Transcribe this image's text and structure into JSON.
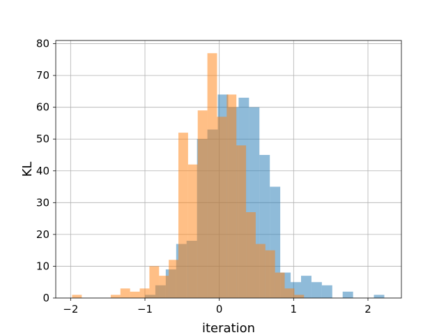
{
  "chart_data": {
    "type": "bar",
    "title": "",
    "xlabel": "iteration",
    "ylabel": "KL",
    "xlim": [
      -2.2,
      2.45
    ],
    "ylim": [
      0,
      81
    ],
    "grid": true,
    "legend": "none",
    "x_ticks": [
      -2,
      -1,
      0,
      1,
      2
    ],
    "x_tick_labels": [
      "−2",
      "−1",
      "0",
      "1",
      "2"
    ],
    "y_ticks": [
      0,
      10,
      20,
      30,
      40,
      50,
      60,
      70,
      80
    ],
    "y_tick_labels": [
      "0",
      "10",
      "20",
      "30",
      "40",
      "50",
      "60",
      "70",
      "80"
    ],
    "series": [
      {
        "color": "#1f77b4",
        "opacity": 0.5,
        "bins": [
          {
            "x0": -1.0,
            "x1": -0.86,
            "count": 1
          },
          {
            "x0": -0.86,
            "x1": -0.72,
            "count": 4
          },
          {
            "x0": -0.72,
            "x1": -0.58,
            "count": 9
          },
          {
            "x0": -0.58,
            "x1": -0.44,
            "count": 17
          },
          {
            "x0": -0.44,
            "x1": -0.3,
            "count": 18
          },
          {
            "x0": -0.3,
            "x1": -0.16,
            "count": 50
          },
          {
            "x0": -0.16,
            "x1": -0.02,
            "count": 53
          },
          {
            "x0": -0.02,
            "x1": 0.12,
            "count": 64
          },
          {
            "x0": 0.12,
            "x1": 0.26,
            "count": 60
          },
          {
            "x0": 0.26,
            "x1": 0.4,
            "count": 63
          },
          {
            "x0": 0.4,
            "x1": 0.54,
            "count": 60
          },
          {
            "x0": 0.54,
            "x1": 0.68,
            "count": 45
          },
          {
            "x0": 0.68,
            "x1": 0.82,
            "count": 35
          },
          {
            "x0": 0.82,
            "x1": 0.96,
            "count": 8
          },
          {
            "x0": 0.96,
            "x1": 1.1,
            "count": 5
          },
          {
            "x0": 1.1,
            "x1": 1.24,
            "count": 7
          },
          {
            "x0": 1.24,
            "x1": 1.38,
            "count": 5
          },
          {
            "x0": 1.38,
            "x1": 1.52,
            "count": 4
          },
          {
            "x0": 1.52,
            "x1": 1.66,
            "count": 0
          },
          {
            "x0": 1.66,
            "x1": 1.8,
            "count": 2
          },
          {
            "x0": 1.8,
            "x1": 1.94,
            "count": 0
          },
          {
            "x0": 1.94,
            "x1": 2.08,
            "count": 0
          },
          {
            "x0": 2.08,
            "x1": 2.22,
            "count": 1
          }
        ]
      },
      {
        "color": "#ff7f0e",
        "opacity": 0.5,
        "bins": [
          {
            "x0": -1.98,
            "x1": -1.85,
            "count": 1
          },
          {
            "x0": -1.85,
            "x1": -1.72,
            "count": 0
          },
          {
            "x0": -1.72,
            "x1": -1.59,
            "count": 0
          },
          {
            "x0": -1.59,
            "x1": -1.46,
            "count": 0
          },
          {
            "x0": -1.46,
            "x1": -1.33,
            "count": 1
          },
          {
            "x0": -1.33,
            "x1": -1.2,
            "count": 3
          },
          {
            "x0": -1.2,
            "x1": -1.07,
            "count": 2
          },
          {
            "x0": -1.07,
            "x1": -0.94,
            "count": 3
          },
          {
            "x0": -0.94,
            "x1": -0.81,
            "count": 10
          },
          {
            "x0": -0.81,
            "x1": -0.68,
            "count": 7
          },
          {
            "x0": -0.68,
            "x1": -0.55,
            "count": 12
          },
          {
            "x0": -0.55,
            "x1": -0.42,
            "count": 52
          },
          {
            "x0": -0.42,
            "x1": -0.29,
            "count": 42
          },
          {
            "x0": -0.29,
            "x1": -0.16,
            "count": 59
          },
          {
            "x0": -0.16,
            "x1": -0.03,
            "count": 77
          },
          {
            "x0": -0.03,
            "x1": 0.1,
            "count": 57
          },
          {
            "x0": 0.1,
            "x1": 0.23,
            "count": 64
          },
          {
            "x0": 0.23,
            "x1": 0.36,
            "count": 48
          },
          {
            "x0": 0.36,
            "x1": 0.49,
            "count": 27
          },
          {
            "x0": 0.49,
            "x1": 0.62,
            "count": 17
          },
          {
            "x0": 0.62,
            "x1": 0.75,
            "count": 15
          },
          {
            "x0": 0.75,
            "x1": 0.88,
            "count": 8
          },
          {
            "x0": 0.88,
            "x1": 1.01,
            "count": 3
          },
          {
            "x0": 1.01,
            "x1": 1.14,
            "count": 1
          },
          {
            "x0": 1.14,
            "x1": 1.27,
            "count": 0
          }
        ]
      }
    ]
  }
}
